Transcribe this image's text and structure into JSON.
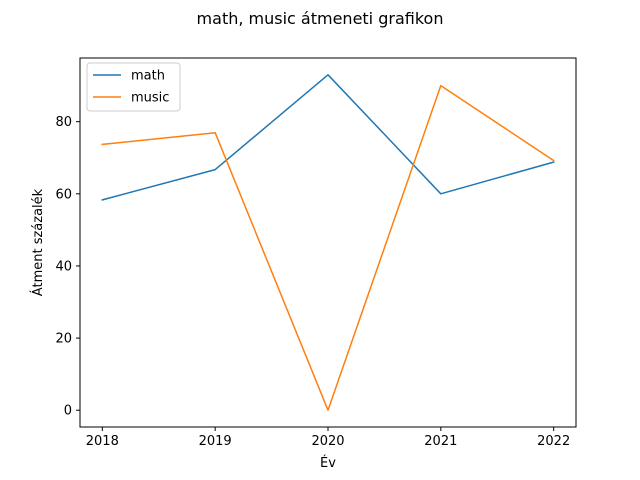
{
  "chart_data": {
    "type": "line",
    "title": "math, music átmeneti grafikon",
    "xlabel": "Év",
    "ylabel": "Átment százalék",
    "x": [
      "2018",
      "2019",
      "2020",
      "2021",
      "2022"
    ],
    "xticks": [
      "2018",
      "2019",
      "2020",
      "2021",
      "2022"
    ],
    "yticks": [
      "0",
      "20",
      "40",
      "60",
      "80"
    ],
    "ylim": [
      -4.65,
      97.65
    ],
    "series": [
      {
        "name": "math",
        "color": "#1f77b4",
        "values": [
          58.3,
          66.7,
          93.0,
          60.0,
          68.8
        ]
      },
      {
        "name": "music",
        "color": "#ff7f0e",
        "values": [
          73.7,
          76.9,
          0.0,
          90.0,
          69.2
        ]
      }
    ],
    "legend": {
      "position": "upper-left"
    },
    "grid": false
  }
}
